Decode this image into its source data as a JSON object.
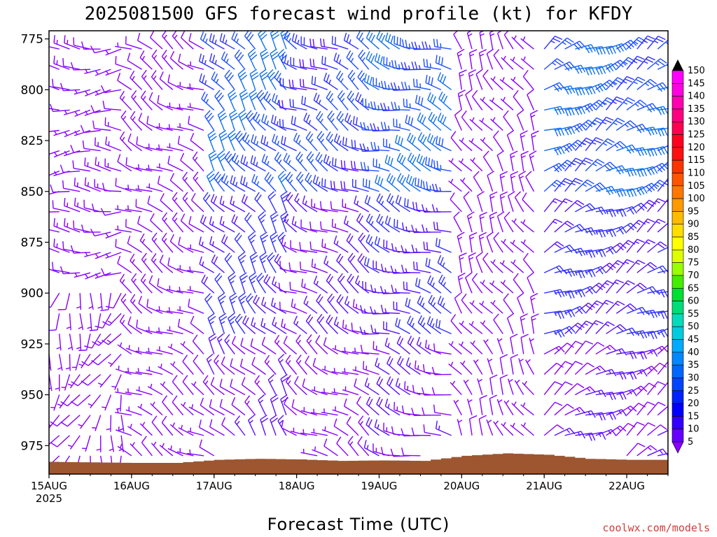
{
  "chart_data": {
    "type": "wind-barb-profile",
    "title": "2025081500 GFS forecast wind profile (kt) for KFDY",
    "xlabel": "Forecast Time (UTC)",
    "ylabel": "",
    "x_ticks": [
      {
        "label": "15AUG",
        "sublabel": "2025",
        "hour": 0
      },
      {
        "label": "16AUG",
        "sublabel": "",
        "hour": 24
      },
      {
        "label": "17AUG",
        "sublabel": "",
        "hour": 48
      },
      {
        "label": "18AUG",
        "sublabel": "",
        "hour": 72
      },
      {
        "label": "19AUG",
        "sublabel": "",
        "hour": 96
      },
      {
        "label": "20AUG",
        "sublabel": "",
        "hour": 120
      },
      {
        "label": "21AUG",
        "sublabel": "",
        "hour": 144
      },
      {
        "label": "22AUG",
        "sublabel": "",
        "hour": 168
      }
    ],
    "x_range_hours": [
      0,
      180
    ],
    "y_ticks": [
      "775",
      "800",
      "825",
      "850",
      "875",
      "900",
      "925",
      "950",
      "975"
    ],
    "y_tick_values": [
      775,
      800,
      825,
      850,
      875,
      900,
      925,
      950,
      975
    ],
    "y_range_hPa": [
      771,
      989
    ],
    "y_inverted": true,
    "barb_levels_hPa": [
      780,
      790,
      800,
      810,
      820,
      830,
      840,
      850,
      860,
      870,
      880,
      890,
      900,
      910,
      920,
      930,
      940,
      950,
      960,
      970,
      980
    ],
    "barb_interval_hours": 3,
    "colorbar": {
      "units": "kt",
      "labels": [
        "150",
        "145",
        "140",
        "135",
        "130",
        "125",
        "120",
        "115",
        "110",
        "105",
        "100",
        "95",
        "90",
        "85",
        "80",
        "75",
        "70",
        "65",
        "60",
        "55",
        "50",
        "45",
        "40",
        "35",
        "30",
        "25",
        "20",
        "15",
        "10",
        "5"
      ],
      "colors": [
        "#ff00ff",
        "#ff00e0",
        "#ff00b0",
        "#ff0080",
        "#ff0050",
        "#ff0020",
        "#ff1010",
        "#ff3300",
        "#ff5500",
        "#ff7700",
        "#ff9900",
        "#ffbb00",
        "#ffdd00",
        "#ffff00",
        "#ddff00",
        "#99ff00",
        "#44ee00",
        "#00dd33",
        "#00dd77",
        "#00ddbb",
        "#00ccdd",
        "#00aaff",
        "#0088ff",
        "#0066ff",
        "#0044ff",
        "#0022ff",
        "#0000ff",
        "#3300ff",
        "#6600ff",
        "#8800ff"
      ]
    },
    "terrain_color": "#9e5630",
    "surface_hPa_by_day": [
      {
        "hour": 0,
        "p": 983
      },
      {
        "hour": 24,
        "p": 983.5
      },
      {
        "hour": 36,
        "p": 983.5
      },
      {
        "hour": 48,
        "p": 982
      },
      {
        "hour": 60,
        "p": 981.5
      },
      {
        "hour": 72,
        "p": 981.8
      },
      {
        "hour": 84,
        "p": 982.5
      },
      {
        "hour": 96,
        "p": 982.3
      },
      {
        "hour": 108,
        "p": 982.5
      },
      {
        "hour": 120,
        "p": 980
      },
      {
        "hour": 132,
        "p": 978.8
      },
      {
        "hour": 144,
        "p": 979.5
      },
      {
        "hour": 156,
        "p": 981.5
      },
      {
        "hour": 168,
        "p": 982
      },
      {
        "hour": 180,
        "p": 982
      }
    ],
    "wind_regimes": [
      {
        "from_hour": 0,
        "to_hour": 24,
        "direction_deg": 270,
        "speed_kt": 10,
        "low_level_direction_deg": 200
      },
      {
        "from_hour": 24,
        "to_hour": 48,
        "direction_deg": 300,
        "speed_kt": 10
      },
      {
        "from_hour": 48,
        "to_hour": 72,
        "direction_deg": 320,
        "speed_kt": 20
      },
      {
        "from_hour": 72,
        "to_hour": 96,
        "direction_deg": 300,
        "speed_kt": 15
      },
      {
        "from_hour": 96,
        "to_hour": 120,
        "direction_deg": 290,
        "speed_kt": 20
      },
      {
        "from_hour": 120,
        "to_hour": 144,
        "direction_deg": 330,
        "speed_kt": 10
      },
      {
        "from_hour": 144,
        "to_hour": 180,
        "direction_deg": 60,
        "speed_kt": 20
      }
    ]
  },
  "credit": "coolwx.com/models"
}
